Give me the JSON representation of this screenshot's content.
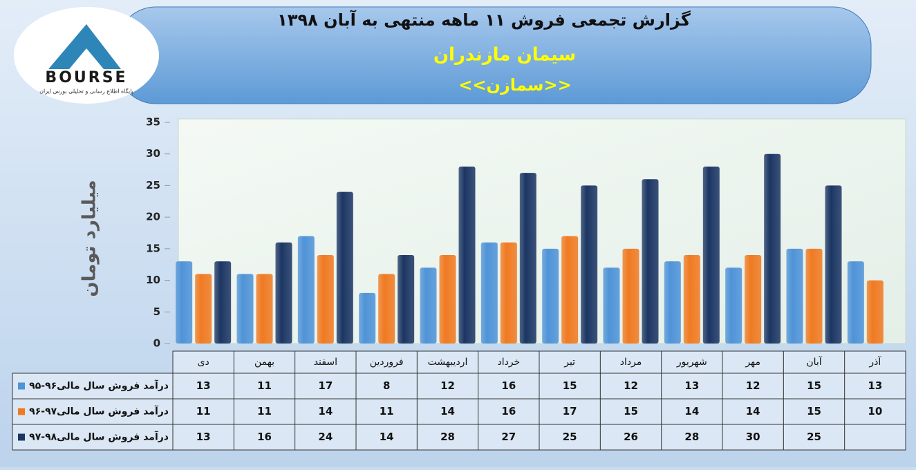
{
  "logo": {
    "text": "BOURSE",
    "tagline": "پایگاه اطلاع رسانی و تحلیلی بورس ایران"
  },
  "chart_data": {
    "type": "bar",
    "title": "گزارش تجمعی فروش ۱۱ ماهه منتهی به آبان ۱۳۹۸",
    "subtitle": "سیمان مازندران",
    "symbol": "<<سمازن>>",
    "y_label": "میلیارد تومان",
    "categories": [
      "دی",
      "بهمن",
      "اسفند",
      "فروردین",
      "اردیبهشت",
      "خرداد",
      "تیر",
      "مرداد",
      "شهریور",
      "مهر",
      "آبان",
      "آذر"
    ],
    "series": [
      {
        "name": "درآمد فروش سال مالی۹۶-۹۵",
        "color": "#4f93d8",
        "values": [
          13,
          11,
          17,
          8,
          12,
          16,
          15,
          12,
          13,
          12,
          15,
          13
        ]
      },
      {
        "name": "درآمد فروش سال مالی۹۷-۹۶",
        "color": "#f07a22",
        "values": [
          11,
          11,
          14,
          11,
          14,
          16,
          17,
          15,
          14,
          14,
          15,
          10
        ]
      },
      {
        "name": "درآمد فروش سال مالی۹۸-۹۷",
        "color": "#1c3664",
        "values": [
          13,
          16,
          24,
          14,
          28,
          27,
          25,
          26,
          28,
          30,
          25,
          null
        ]
      }
    ],
    "ylim": [
      0,
      35
    ],
    "yticks": [
      0,
      5,
      10,
      15,
      20,
      25,
      30,
      35
    ],
    "grid": false
  }
}
